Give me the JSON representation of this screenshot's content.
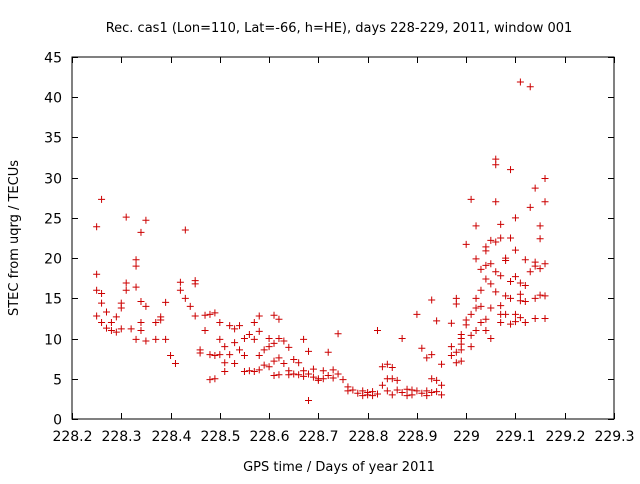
{
  "chart_data": {
    "type": "scatter",
    "title": "Rec. cas1 (Lon=110, Lat=-66, h=HE), days 228-229, 2011, window 001",
    "xlabel": "GPS time / Days of year 2011",
    "ylabel": "STEC from uqrg / TECUs",
    "xlim": [
      228.2,
      229.3
    ],
    "ylim": [
      0,
      45
    ],
    "xticks": [
      228.2,
      228.3,
      228.4,
      228.5,
      228.6,
      228.7,
      228.8,
      228.9,
      229.0,
      229.1,
      229.2,
      229.3
    ],
    "xtick_labels": [
      "228.2",
      "228.3",
      "228.4",
      "228.5",
      "228.6",
      "228.7",
      "228.8",
      "228.9",
      "229",
      "229.1",
      "229.2",
      "229.3"
    ],
    "yticks": [
      0,
      5,
      10,
      15,
      20,
      25,
      30,
      35,
      40,
      45
    ],
    "ytick_labels": [
      "0",
      "5",
      "10",
      "15",
      "20",
      "25",
      "30",
      "35",
      "40",
      "45"
    ],
    "grid": false,
    "marker": "+",
    "color": "#cc0000",
    "series": [
      {
        "points": [
          [
            228.25,
            23.9
          ],
          [
            228.26,
            27.3
          ],
          [
            228.25,
            18.0
          ],
          [
            228.25,
            16.0
          ],
          [
            228.26,
            15.6
          ],
          [
            228.26,
            14.4
          ],
          [
            228.25,
            12.8
          ],
          [
            228.26,
            12.0
          ],
          [
            228.27,
            13.3
          ],
          [
            228.27,
            11.3
          ],
          [
            228.28,
            11.0
          ],
          [
            228.28,
            12.0
          ],
          [
            228.29,
            10.8
          ],
          [
            228.29,
            12.7
          ],
          [
            228.3,
            14.4
          ],
          [
            228.3,
            13.8
          ],
          [
            228.3,
            11.2
          ],
          [
            228.31,
            16.9
          ],
          [
            228.31,
            16.0
          ],
          [
            228.31,
            25.1
          ],
          [
            228.32,
            11.2
          ],
          [
            228.33,
            19.8
          ],
          [
            228.33,
            19.0
          ],
          [
            228.33,
            16.4
          ],
          [
            228.33,
            9.9
          ],
          [
            228.34,
            23.2
          ],
          [
            228.34,
            14.6
          ],
          [
            228.34,
            12.0
          ],
          [
            228.34,
            11.0
          ],
          [
            228.35,
            24.7
          ],
          [
            228.35,
            14.0
          ],
          [
            228.35,
            9.7
          ],
          [
            228.37,
            12.0
          ],
          [
            228.37,
            9.9
          ],
          [
            228.38,
            12.7
          ],
          [
            228.38,
            12.3
          ],
          [
            228.39,
            14.5
          ],
          [
            228.39,
            9.9
          ],
          [
            228.4,
            7.9
          ],
          [
            228.41,
            6.9
          ],
          [
            228.42,
            17.0
          ],
          [
            228.42,
            16.0
          ],
          [
            228.43,
            23.5
          ],
          [
            228.43,
            15.0
          ],
          [
            228.44,
            14.0
          ],
          [
            228.45,
            16.8
          ],
          [
            228.45,
            17.2
          ],
          [
            228.45,
            12.8
          ],
          [
            228.46,
            8.6
          ],
          [
            228.46,
            8.2
          ],
          [
            228.47,
            12.9
          ],
          [
            228.47,
            11.0
          ],
          [
            228.48,
            8.0
          ],
          [
            228.48,
            4.9
          ],
          [
            228.48,
            13.0
          ],
          [
            228.49,
            13.2
          ],
          [
            228.49,
            7.9
          ],
          [
            228.49,
            5.0
          ],
          [
            228.5,
            12.0
          ],
          [
            228.5,
            9.9
          ],
          [
            228.5,
            8.0
          ],
          [
            228.51,
            9.0
          ],
          [
            228.51,
            7.0
          ],
          [
            228.51,
            5.9
          ],
          [
            228.52,
            11.6
          ],
          [
            228.52,
            8.0
          ],
          [
            228.53,
            11.2
          ],
          [
            228.53,
            9.5
          ],
          [
            228.53,
            6.9
          ],
          [
            228.54,
            11.6
          ],
          [
            228.54,
            8.6
          ],
          [
            228.55,
            10.0
          ],
          [
            228.55,
            7.9
          ],
          [
            228.55,
            5.9
          ],
          [
            228.56,
            10.5
          ],
          [
            228.56,
            6.0
          ],
          [
            228.57,
            9.9
          ],
          [
            228.57,
            5.9
          ],
          [
            228.57,
            12.0
          ],
          [
            228.58,
            12.8
          ],
          [
            228.58,
            10.9
          ],
          [
            228.58,
            7.9
          ],
          [
            228.58,
            6.1
          ],
          [
            228.59,
            8.6
          ],
          [
            228.59,
            6.7
          ],
          [
            228.6,
            10.0
          ],
          [
            228.6,
            9.0
          ],
          [
            228.6,
            6.5
          ],
          [
            228.61,
            12.9
          ],
          [
            228.61,
            9.4
          ],
          [
            228.61,
            7.2
          ],
          [
            228.61,
            5.4
          ],
          [
            228.62,
            12.4
          ],
          [
            228.62,
            10.0
          ],
          [
            228.62,
            7.6
          ],
          [
            228.62,
            5.5
          ],
          [
            228.63,
            9.7
          ],
          [
            228.63,
            6.9
          ],
          [
            228.64,
            8.9
          ],
          [
            228.64,
            6.0
          ],
          [
            228.64,
            5.5
          ],
          [
            228.65,
            7.4
          ],
          [
            228.65,
            5.6
          ],
          [
            228.66,
            7.0
          ],
          [
            228.66,
            5.5
          ],
          [
            228.67,
            9.9
          ],
          [
            228.67,
            6.0
          ],
          [
            228.67,
            5.3
          ],
          [
            228.68,
            8.4
          ],
          [
            228.68,
            5.6
          ],
          [
            228.68,
            2.3
          ],
          [
            228.69,
            6.2
          ],
          [
            228.69,
            5.2
          ],
          [
            228.7,
            5.0
          ],
          [
            228.7,
            4.8
          ],
          [
            228.71,
            5.0
          ],
          [
            228.71,
            6.0
          ],
          [
            228.72,
            8.3
          ],
          [
            228.72,
            5.4
          ],
          [
            228.73,
            6.1
          ],
          [
            228.73,
            5.1
          ],
          [
            228.74,
            10.6
          ],
          [
            228.74,
            5.6
          ],
          [
            228.75,
            4.9
          ],
          [
            228.76,
            4.0
          ],
          [
            228.76,
            3.5
          ],
          [
            228.77,
            3.6
          ],
          [
            228.78,
            3.2
          ],
          [
            228.79,
            3.5
          ],
          [
            228.79,
            2.9
          ],
          [
            228.8,
            3.3
          ],
          [
            228.8,
            3.0
          ],
          [
            228.81,
            3.4
          ],
          [
            228.81,
            2.9
          ],
          [
            228.82,
            11.0
          ],
          [
            228.82,
            3.1
          ],
          [
            228.83,
            6.5
          ],
          [
            228.83,
            4.2
          ],
          [
            228.84,
            5.0
          ],
          [
            228.84,
            3.5
          ],
          [
            228.84,
            6.8
          ],
          [
            228.85,
            6.4
          ],
          [
            228.85,
            5.0
          ],
          [
            228.85,
            3.0
          ],
          [
            228.86,
            3.6
          ],
          [
            228.86,
            4.8
          ],
          [
            228.87,
            3.3
          ],
          [
            228.87,
            10.0
          ],
          [
            228.88,
            3.7
          ],
          [
            228.88,
            2.9
          ],
          [
            228.89,
            3.6
          ],
          [
            228.89,
            3.0
          ],
          [
            228.9,
            13.0
          ],
          [
            228.9,
            3.5
          ],
          [
            228.91,
            8.8
          ],
          [
            228.91,
            3.2
          ],
          [
            228.92,
            7.6
          ],
          [
            228.92,
            3.5
          ],
          [
            228.92,
            2.9
          ],
          [
            228.93,
            14.8
          ],
          [
            228.93,
            8.0
          ],
          [
            228.93,
            5.0
          ],
          [
            228.93,
            3.3
          ],
          [
            228.94,
            12.2
          ],
          [
            228.94,
            4.8
          ],
          [
            228.94,
            3.4
          ],
          [
            228.95,
            6.8
          ],
          [
            228.95,
            4.2
          ],
          [
            228.95,
            3.0
          ],
          [
            228.97,
            9.0
          ],
          [
            228.97,
            7.9
          ],
          [
            228.97,
            11.9
          ],
          [
            228.98,
            8.3
          ],
          [
            228.98,
            7.0
          ],
          [
            228.98,
            15.0
          ],
          [
            228.98,
            14.3
          ],
          [
            228.99,
            10.5
          ],
          [
            228.99,
            10.0
          ],
          [
            228.99,
            9.3
          ],
          [
            228.99,
            8.6
          ],
          [
            228.99,
            7.2
          ],
          [
            229.0,
            12.3
          ],
          [
            229.0,
            11.7
          ],
          [
            229.0,
            21.7
          ],
          [
            229.01,
            13.0
          ],
          [
            229.01,
            10.4
          ],
          [
            229.01,
            9.0
          ],
          [
            229.01,
            27.3
          ],
          [
            229.02,
            24.0
          ],
          [
            229.02,
            19.9
          ],
          [
            229.02,
            15.0
          ],
          [
            229.02,
            13.8
          ],
          [
            229.02,
            11.0
          ],
          [
            229.03,
            18.6
          ],
          [
            229.03,
            16.0
          ],
          [
            229.03,
            14.0
          ],
          [
            229.03,
            12.0
          ],
          [
            229.04,
            20.9
          ],
          [
            229.04,
            21.4
          ],
          [
            229.04,
            19.1
          ],
          [
            229.04,
            17.4
          ],
          [
            229.04,
            12.4
          ],
          [
            229.04,
            11.0
          ],
          [
            229.05,
            22.2
          ],
          [
            229.05,
            19.3
          ],
          [
            229.05,
            16.8
          ],
          [
            229.05,
            13.8
          ],
          [
            229.05,
            10.0
          ],
          [
            229.06,
            32.3
          ],
          [
            229.06,
            31.6
          ],
          [
            229.06,
            27.0
          ],
          [
            229.06,
            22.0
          ],
          [
            229.06,
            18.3
          ],
          [
            229.06,
            15.8
          ],
          [
            229.07,
            24.2
          ],
          [
            229.07,
            22.5
          ],
          [
            229.07,
            17.8
          ],
          [
            229.07,
            14.1
          ],
          [
            229.07,
            13.0
          ],
          [
            229.07,
            12.0
          ],
          [
            229.08,
            20.0
          ],
          [
            229.08,
            19.7
          ],
          [
            229.08,
            15.3
          ],
          [
            229.08,
            13.0
          ],
          [
            229.09,
            31.0
          ],
          [
            229.09,
            22.5
          ],
          [
            229.09,
            17.1
          ],
          [
            229.09,
            15.0
          ],
          [
            229.09,
            11.8
          ],
          [
            229.1,
            25.0
          ],
          [
            229.1,
            21.0
          ],
          [
            229.1,
            17.7
          ],
          [
            229.1,
            13.0
          ],
          [
            229.1,
            12.1
          ],
          [
            229.11,
            41.9
          ],
          [
            229.11,
            16.9
          ],
          [
            229.11,
            15.5
          ],
          [
            229.11,
            14.7
          ],
          [
            229.11,
            12.6
          ],
          [
            229.12,
            19.8
          ],
          [
            229.12,
            16.6
          ],
          [
            229.12,
            14.6
          ],
          [
            229.12,
            12.0
          ],
          [
            229.13,
            41.3
          ],
          [
            229.13,
            26.3
          ],
          [
            229.13,
            18.3
          ],
          [
            229.14,
            28.7
          ],
          [
            229.14,
            19.5
          ],
          [
            229.14,
            19.0
          ],
          [
            229.14,
            15.0
          ],
          [
            229.14,
            12.5
          ],
          [
            229.15,
            24.0
          ],
          [
            229.15,
            22.4
          ],
          [
            229.15,
            18.7
          ],
          [
            229.15,
            15.4
          ],
          [
            229.16,
            29.9
          ],
          [
            229.16,
            27.0
          ],
          [
            229.16,
            19.3
          ],
          [
            229.16,
            15.3
          ],
          [
            229.16,
            12.5
          ]
        ]
      }
    ]
  }
}
